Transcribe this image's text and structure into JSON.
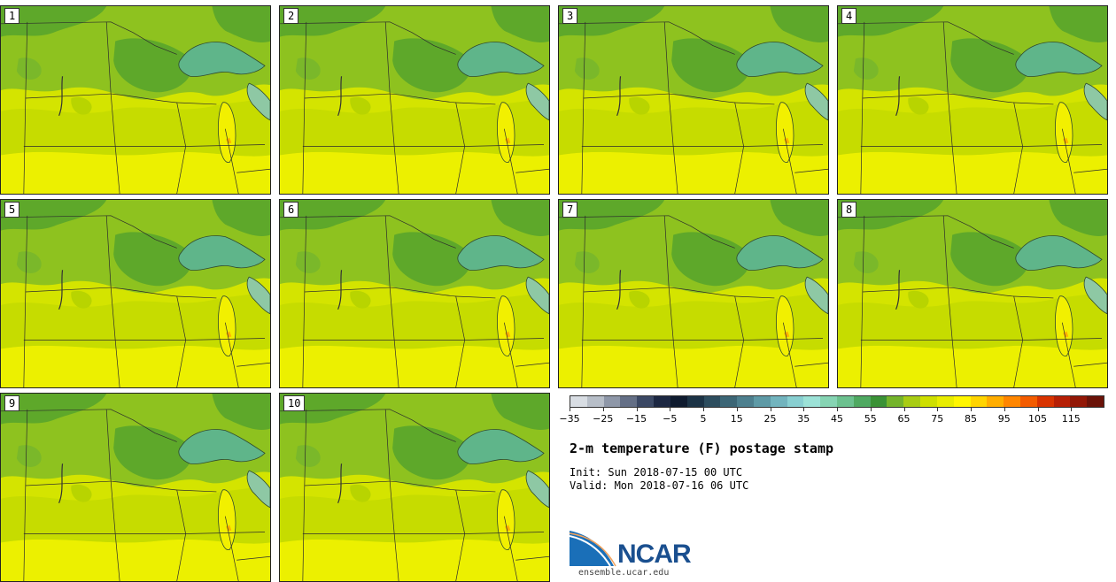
{
  "panels": [
    {
      "label": "1"
    },
    {
      "label": "2"
    },
    {
      "label": "3"
    },
    {
      "label": "4"
    },
    {
      "label": "5"
    },
    {
      "label": "6"
    },
    {
      "label": "7"
    },
    {
      "label": "8"
    },
    {
      "label": "9"
    },
    {
      "label": "10"
    }
  ],
  "colorbar": {
    "colors": [
      "#d8dde3",
      "#b7bec8",
      "#8e97a8",
      "#646f86",
      "#3b4864",
      "#1c2742",
      "#0f1b2f",
      "#1c3346",
      "#2d4d5e",
      "#3c6676",
      "#4d7f8e",
      "#5e9aa6",
      "#72b4be",
      "#88cfd1",
      "#9ce2d7",
      "#86d4b3",
      "#6cc18f",
      "#4fa961",
      "#3a9236",
      "#74b42b",
      "#a8cc14",
      "#cedf00",
      "#e8ec00",
      "#fff600",
      "#ffd400",
      "#ffad00",
      "#ff8600",
      "#f35c00",
      "#d83300",
      "#b61f05",
      "#921706",
      "#6a1208"
    ],
    "tick_values": [
      "−35",
      "−25",
      "−15",
      "−5",
      "5",
      "15",
      "25",
      "35",
      "45",
      "55",
      "65",
      "75",
      "85",
      "95",
      "105",
      "115"
    ]
  },
  "title": "2-m temperature (F) postage stamp",
  "init": "Init: Sun 2018-07-15 00 UTC",
  "valid": "Valid: Mon 2018-07-16 06 UTC",
  "logo": {
    "name": "NCAR",
    "url": "ensemble.ucar.edu"
  }
}
